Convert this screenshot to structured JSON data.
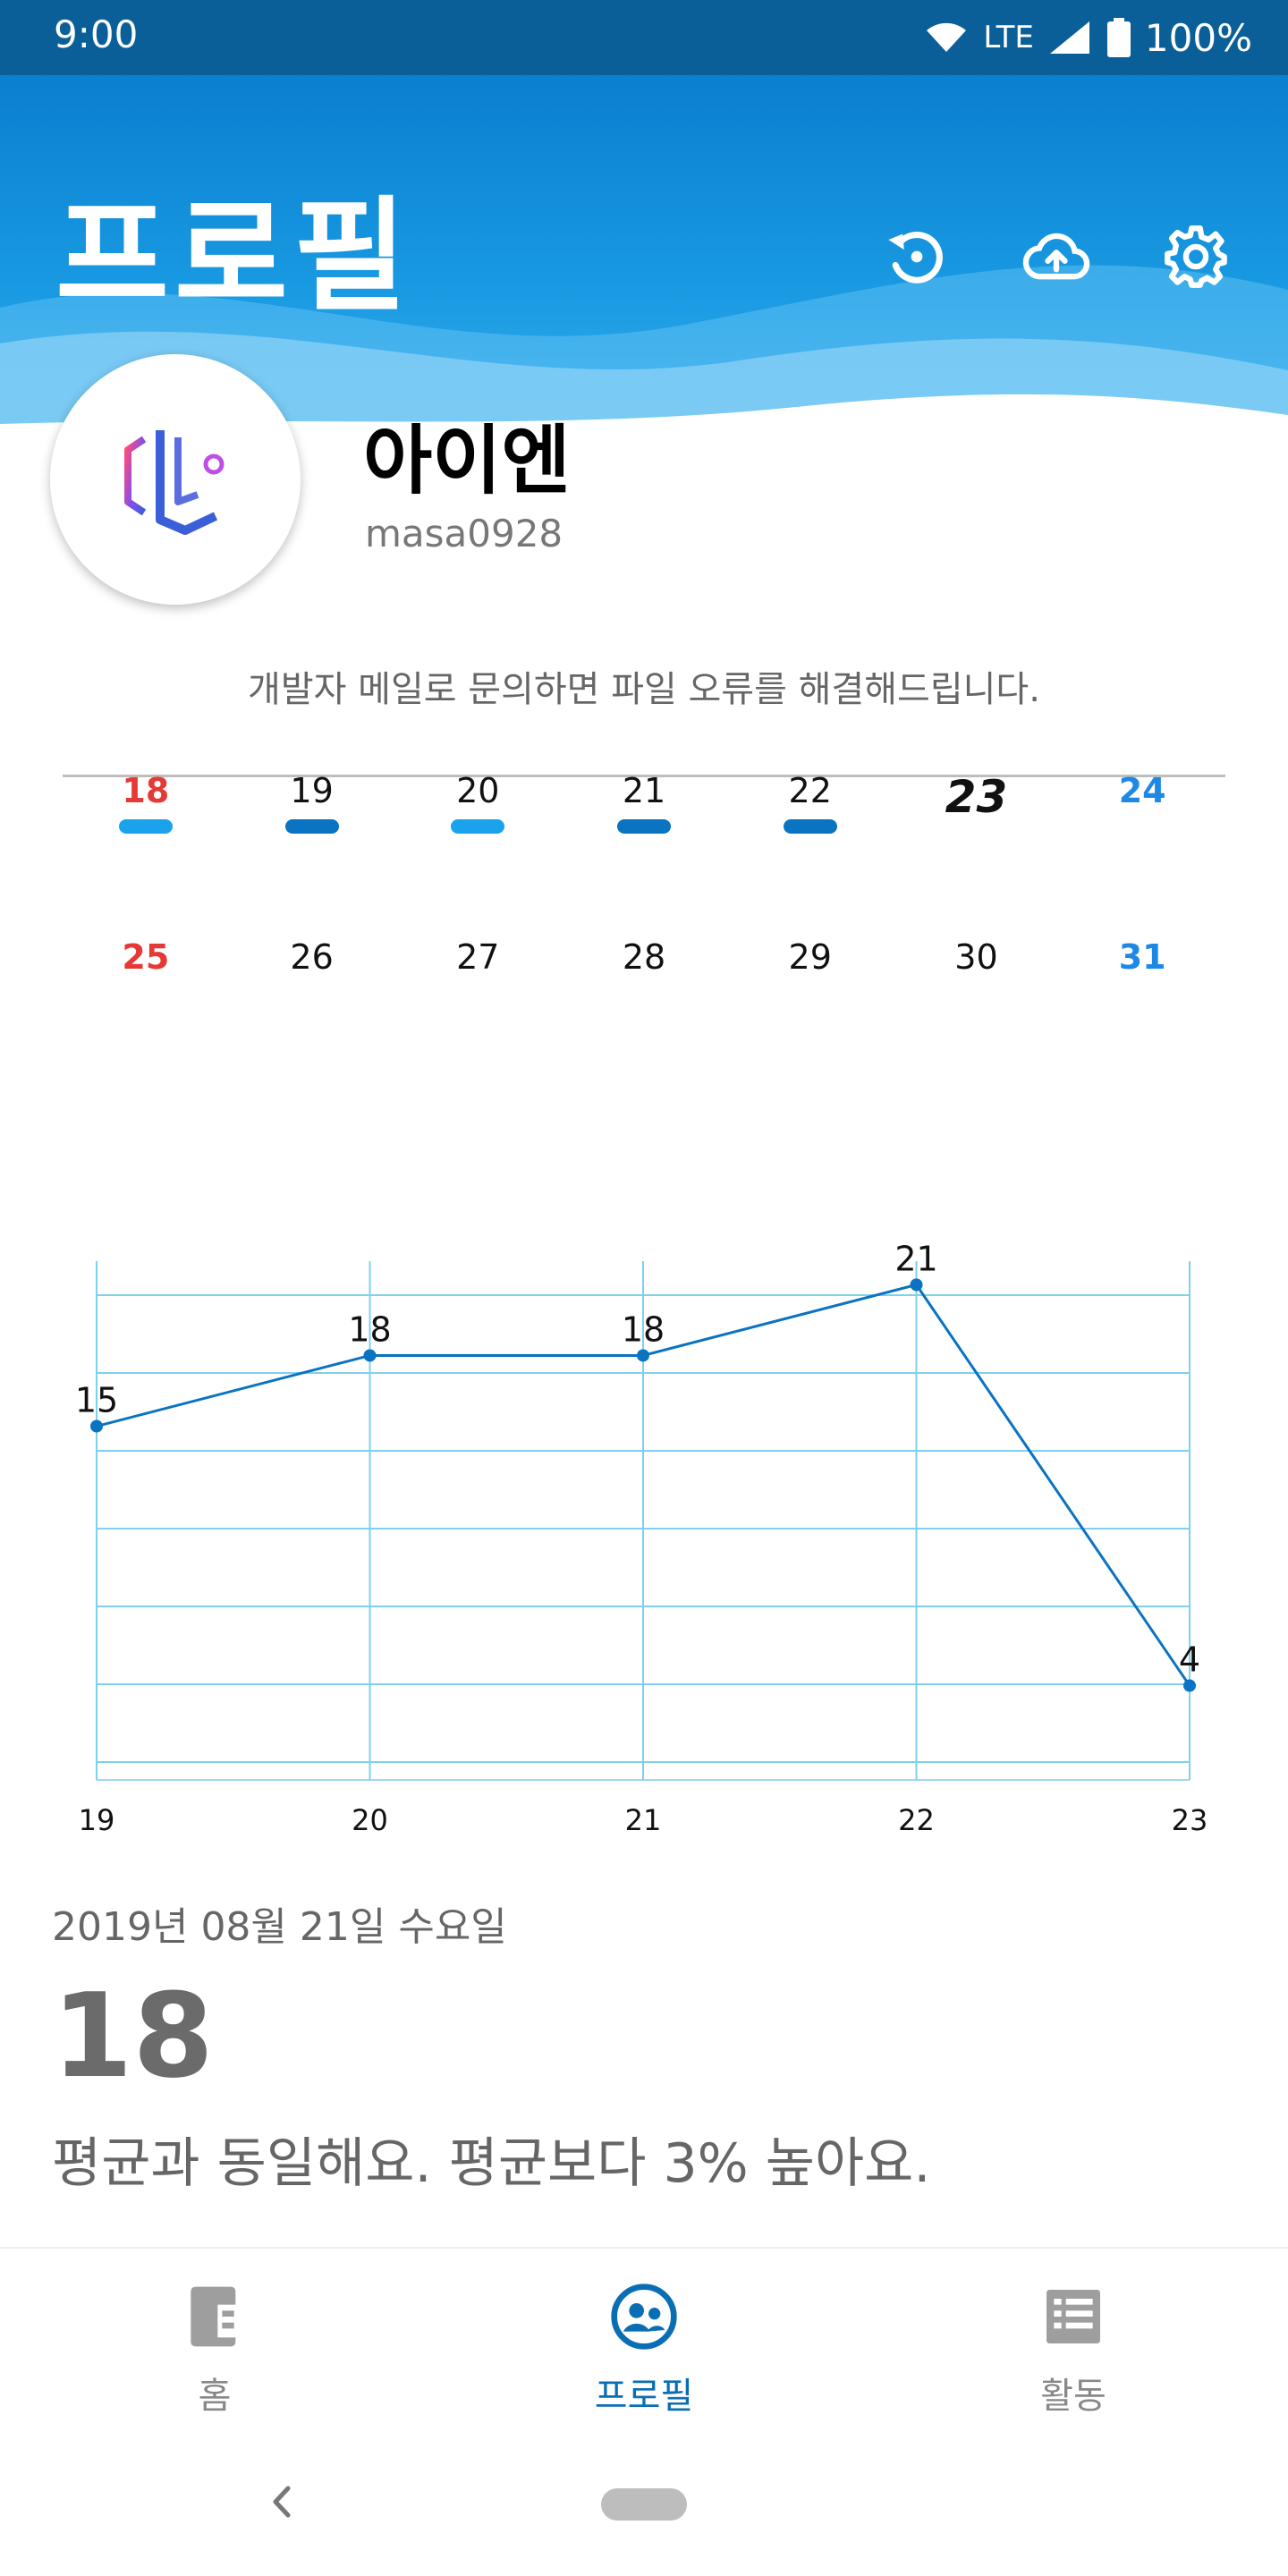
{
  "status_bar": {
    "time": "9:00",
    "network": "LTE",
    "battery": "100%"
  },
  "header": {
    "title": "프로필"
  },
  "profile": {
    "name": "아이엔",
    "username": "masa0928",
    "description": "개발자 메일로 문의하면 파일 오류를 해결해드립니다."
  },
  "calendar": {
    "week1": [
      {
        "day": "18",
        "bar": "#1aa3ec"
      },
      {
        "day": "19",
        "bar": "#0a73c2"
      },
      {
        "day": "20",
        "bar": "#1aa3ec"
      },
      {
        "day": "21",
        "bar": "#0a73c2"
      },
      {
        "day": "22",
        "bar": "#0a73c2"
      },
      {
        "day": "23"
      },
      {
        "day": "24"
      }
    ],
    "week2": [
      {
        "day": "25"
      },
      {
        "day": "26"
      },
      {
        "day": "27"
      },
      {
        "day": "28"
      },
      {
        "day": "29"
      },
      {
        "day": "30"
      },
      {
        "day": "31"
      }
    ]
  },
  "chart_data": {
    "type": "line",
    "x": [
      "19",
      "20",
      "21",
      "22",
      "23"
    ],
    "values": [
      15,
      18,
      18,
      21,
      4
    ],
    "ylim": [
      0,
      22
    ],
    "grid": true,
    "line_color": "#0a73c2"
  },
  "detail": {
    "date": "2019년 08월 21일 수요일",
    "value": "18",
    "message": "평균과 동일해요. 평균보다 3% 높아요."
  },
  "bottom_nav": {
    "items": [
      {
        "label": "홈",
        "icon": "home-icon",
        "active": false
      },
      {
        "label": "프로필",
        "icon": "profile-icon",
        "active": true
      },
      {
        "label": "활동",
        "icon": "activity-list-icon",
        "active": false
      }
    ]
  }
}
